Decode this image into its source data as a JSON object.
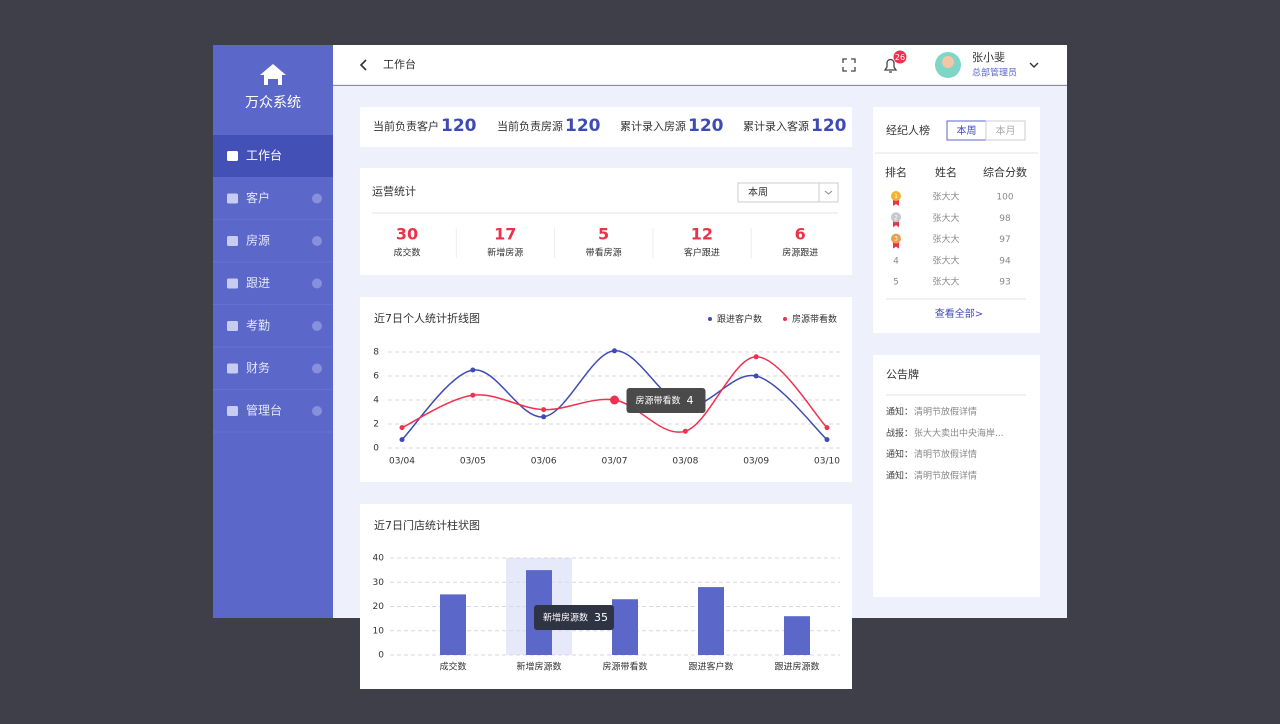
{
  "sidebar": {
    "brand": "万众系统",
    "menu": [
      "工作台",
      "客户",
      "房源",
      "跟进",
      "考勤",
      "财务",
      "管理台"
    ]
  },
  "header": {
    "breadcrumb": "工作台",
    "notification_count": 26,
    "user_name": "张小斐",
    "user_role": "总部管理员"
  },
  "summary": [
    {
      "label": "当前负责客户",
      "value": 120
    },
    {
      "label": "当前负责房源",
      "value": 120
    },
    {
      "label": "累计录入房源",
      "value": 120
    },
    {
      "label": "累计录入客源",
      "value": 120
    }
  ],
  "operations": {
    "title": "运营统计",
    "period": "本周",
    "stats": [
      {
        "value": 30,
        "label": "成交数"
      },
      {
        "value": 17,
        "label": "新增房源"
      },
      {
        "value": 5,
        "label": "带看房源"
      },
      {
        "value": 12,
        "label": "客户跟进"
      },
      {
        "value": 6,
        "label": "房源跟进"
      }
    ]
  },
  "line_chart": {
    "type": "line",
    "title": "近7日个人统计折线图",
    "x": [
      "03/04",
      "03/05",
      "03/06",
      "03/07",
      "03/08",
      "03/09",
      "03/10"
    ],
    "series": [
      {
        "name": "跟进客户数",
        "color": "#3f4bb5",
        "values": [
          0.7,
          6.5,
          2.6,
          8.1,
          3.5,
          6.0,
          0.7
        ]
      },
      {
        "name": "房源带看数",
        "color": "#f0304f",
        "values": [
          1.7,
          4.4,
          3.2,
          4,
          1.4,
          7.6,
          1.7
        ]
      }
    ],
    "ylim": [
      0,
      8
    ],
    "yticks": [
      0,
      2,
      4,
      6,
      8
    ],
    "grid": true,
    "legend": "top-right"
  },
  "bar_chart": {
    "type": "bar",
    "title": "近7日门店统计柱状图",
    "categories": [
      "成交数",
      "新增房源数",
      "房源带看数",
      "跟进客户数",
      "跟进房源数"
    ],
    "values": [
      25,
      35,
      23,
      28,
      16
    ],
    "color": "#5b67c9",
    "ylim": [
      0,
      40
    ],
    "yticks": [
      0,
      10,
      20,
      30,
      40
    ],
    "grid": true
  },
  "ranking": {
    "title": "经纪人榜",
    "tabs": [
      "本周",
      "本月"
    ],
    "columns": [
      "排名",
      "姓名",
      "综合分数"
    ],
    "rows": [
      [
        1,
        "张大大",
        100
      ],
      [
        2,
        "张大大",
        98
      ],
      [
        3,
        "张大大",
        97
      ],
      [
        4,
        "张大大",
        94
      ],
      [
        5,
        "张大大",
        93
      ]
    ],
    "more": "查看全部>"
  },
  "notices": {
    "title": "公告牌",
    "items": [
      {
        "tag": "通知：",
        "text": "清明节放假详情"
      },
      {
        "tag": "战报：",
        "text": "张大大卖出中央海岸..."
      },
      {
        "tag": "通知：",
        "text": "清明节放假详情"
      },
      {
        "tag": "通知：",
        "text": "清明节放假详情"
      }
    ]
  }
}
